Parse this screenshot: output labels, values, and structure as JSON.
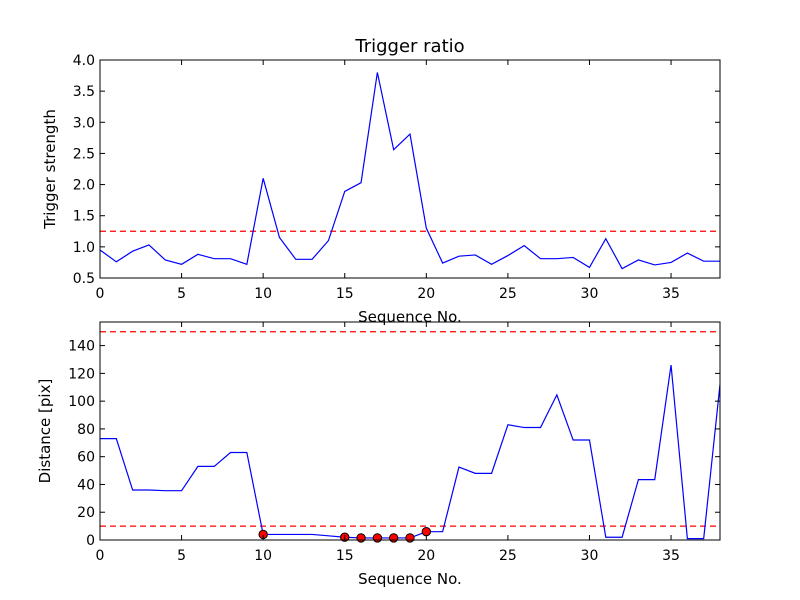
{
  "colors": {
    "line": "#0000ff",
    "threshold": "#ff0000",
    "marker": "#ff0000",
    "marker_edge": "#000000",
    "axes": "#000000"
  },
  "chart_data": [
    {
      "type": "line",
      "title": "Trigger ratio",
      "xlabel": "Sequence No.",
      "ylabel": "Trigger strength",
      "xlim": [
        0,
        38
      ],
      "ylim": [
        0.5,
        4.0
      ],
      "xticks": [
        "0",
        "5",
        "10",
        "15",
        "20",
        "25",
        "30",
        "35"
      ],
      "yticks": [
        "0.5",
        "1.0",
        "1.5",
        "2.0",
        "2.5",
        "3.0",
        "3.5",
        "4.0"
      ],
      "grid": false,
      "series": [
        {
          "x": [
            0,
            1,
            2,
            3,
            4,
            5,
            6,
            7,
            8,
            9,
            10,
            11,
            12,
            13,
            14,
            15,
            16,
            17,
            18,
            19,
            20,
            21,
            22,
            23,
            24,
            25,
            26,
            27,
            28,
            29,
            30,
            31,
            32,
            33,
            34,
            35,
            36,
            37,
            38
          ],
          "values": [
            0.95,
            0.76,
            0.93,
            1.03,
            0.79,
            0.72,
            0.88,
            0.81,
            0.81,
            0.72,
            2.1,
            1.15,
            0.8,
            0.8,
            1.1,
            1.89,
            2.03,
            3.8,
            2.56,
            2.81,
            1.3,
            0.74,
            0.85,
            0.87,
            0.72,
            0.86,
            1.02,
            0.81,
            0.81,
            0.83,
            0.67,
            1.13,
            0.65,
            0.79,
            0.71,
            0.75,
            0.9,
            0.77,
            0.77
          ]
        }
      ],
      "threshold_lines": [
        1.25
      ]
    },
    {
      "type": "line",
      "title": "",
      "xlabel": "Sequence No.",
      "ylabel": "Distance [pix]",
      "xlim": [
        0,
        38
      ],
      "ylim": [
        0,
        157
      ],
      "xticks": [
        "0",
        "5",
        "10",
        "15",
        "20",
        "25",
        "30",
        "35"
      ],
      "yticks": [
        "0",
        "20",
        "40",
        "60",
        "80",
        "100",
        "120",
        "140"
      ],
      "grid": false,
      "series": [
        {
          "x": [
            0,
            1,
            2,
            3,
            4,
            5,
            6,
            7,
            8,
            9,
            10,
            11,
            12,
            13,
            14,
            15,
            16,
            17,
            18,
            19,
            20,
            21,
            22,
            23,
            24,
            25,
            26,
            27,
            28,
            29,
            30,
            31,
            32,
            33,
            34,
            35,
            36,
            37,
            38
          ],
          "values": [
            73,
            73,
            36,
            36,
            35.5,
            35.5,
            53,
            53,
            63,
            63,
            4,
            4,
            4,
            4,
            3,
            2,
            1.5,
            1.5,
            1.5,
            1.5,
            6,
            6,
            52.5,
            48,
            48,
            83,
            81,
            81,
            104.5,
            72,
            72,
            2,
            2,
            43.5,
            43.5,
            126,
            1,
            1,
            112
          ]
        }
      ],
      "highlight_points": [
        {
          "x": 10,
          "y": 4
        },
        {
          "x": 15,
          "y": 2
        },
        {
          "x": 16,
          "y": 1.5
        },
        {
          "x": 17,
          "y": 1.5
        },
        {
          "x": 18,
          "y": 1.5
        },
        {
          "x": 19,
          "y": 1.5
        },
        {
          "x": 20,
          "y": 6
        }
      ],
      "threshold_lines": [
        10,
        150
      ]
    }
  ]
}
